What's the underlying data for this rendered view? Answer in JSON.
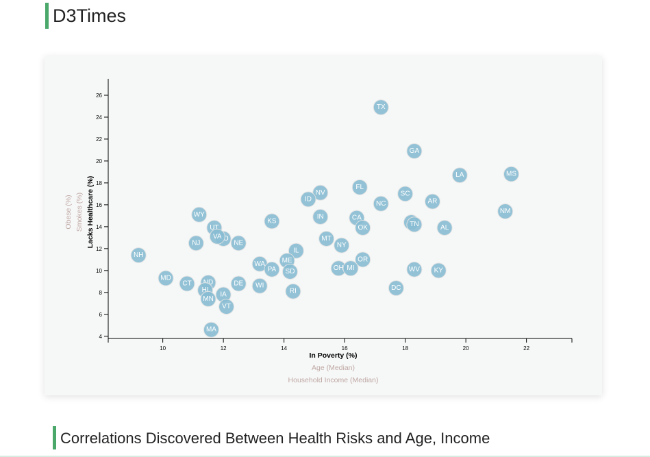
{
  "header": {
    "title": "D3Times"
  },
  "section": {
    "heading": "Correlations Discovered Between Health Risks and Age, Income"
  },
  "chart_data": {
    "type": "scatter",
    "xlabel": "In Poverty (%)",
    "ylabel": "Lacks Healthcare (%)",
    "x_axis_options": [
      "In Poverty (%)",
      "Age (Median)",
      "Household Income (Median)"
    ],
    "y_axis_options": [
      "Lacks Healthcare (%)",
      "Smokes (%)",
      "Obese (%)"
    ],
    "active_x": "In Poverty (%)",
    "active_y": "Lacks Healthcare (%)",
    "xlim": [
      8.2,
      23.5
    ],
    "ylim": [
      3.8,
      27.5
    ],
    "x_ticks": [
      10,
      12,
      14,
      16,
      18,
      20,
      22
    ],
    "y_ticks": [
      4,
      6,
      8,
      10,
      12,
      14,
      16,
      18,
      20,
      22,
      24,
      26
    ],
    "grid": false,
    "legend": "none",
    "points": [
      {
        "abbr": "TX",
        "x": 17.2,
        "y": 24.9
      },
      {
        "abbr": "GA",
        "x": 18.3,
        "y": 20.9
      },
      {
        "abbr": "LA",
        "x": 19.8,
        "y": 18.7
      },
      {
        "abbr": "MS",
        "x": 21.5,
        "y": 18.8
      },
      {
        "abbr": "FL",
        "x": 16.5,
        "y": 17.6
      },
      {
        "abbr": "NV",
        "x": 15.2,
        "y": 17.1
      },
      {
        "abbr": "SC",
        "x": 18.0,
        "y": 17.0
      },
      {
        "abbr": "ID",
        "x": 14.8,
        "y": 16.5
      },
      {
        "abbr": "AR",
        "x": 18.9,
        "y": 16.3
      },
      {
        "abbr": "NC",
        "x": 17.2,
        "y": 16.1
      },
      {
        "abbr": "NM",
        "x": 21.3,
        "y": 15.4
      },
      {
        "abbr": "WY",
        "x": 11.2,
        "y": 15.1
      },
      {
        "abbr": "IN",
        "x": 15.2,
        "y": 14.9
      },
      {
        "abbr": "CA",
        "x": 16.4,
        "y": 14.8
      },
      {
        "abbr": "KS",
        "x": 13.6,
        "y": 14.5
      },
      {
        "abbr": "AZ",
        "x": 18.2,
        "y": 14.4
      },
      {
        "abbr": "TN",
        "x": 18.3,
        "y": 14.2
      },
      {
        "abbr": "AL",
        "x": 19.3,
        "y": 13.9
      },
      {
        "abbr": "OK",
        "x": 16.6,
        "y": 13.9
      },
      {
        "abbr": "UT",
        "x": 11.7,
        "y": 13.9
      },
      {
        "abbr": "CO",
        "x": 12.0,
        "y": 12.9
      },
      {
        "abbr": "MT",
        "x": 15.4,
        "y": 12.9
      },
      {
        "abbr": "VA",
        "x": 11.8,
        "y": 13.1
      },
      {
        "abbr": "NJ",
        "x": 11.1,
        "y": 12.5
      },
      {
        "abbr": "NE",
        "x": 12.5,
        "y": 12.5
      },
      {
        "abbr": "NY",
        "x": 15.9,
        "y": 12.3
      },
      {
        "abbr": "IL",
        "x": 14.4,
        "y": 11.8
      },
      {
        "abbr": "NH",
        "x": 9.2,
        "y": 11.4
      },
      {
        "abbr": "OR",
        "x": 16.6,
        "y": 11.0
      },
      {
        "abbr": "ME",
        "x": 14.1,
        "y": 10.9
      },
      {
        "abbr": "WA",
        "x": 13.2,
        "y": 10.6
      },
      {
        "abbr": "OH",
        "x": 15.8,
        "y": 10.2
      },
      {
        "abbr": "MI",
        "x": 16.2,
        "y": 10.2
      },
      {
        "abbr": "PA",
        "x": 13.6,
        "y": 10.1
      },
      {
        "abbr": "WV",
        "x": 18.3,
        "y": 10.1
      },
      {
        "abbr": "KY",
        "x": 19.1,
        "y": 10.0
      },
      {
        "abbr": "SD",
        "x": 14.2,
        "y": 9.9
      },
      {
        "abbr": "MD",
        "x": 10.1,
        "y": 9.3
      },
      {
        "abbr": "CT",
        "x": 10.8,
        "y": 8.8
      },
      {
        "abbr": "ND",
        "x": 11.5,
        "y": 8.9
      },
      {
        "abbr": "DE",
        "x": 12.5,
        "y": 8.8
      },
      {
        "abbr": "WI",
        "x": 13.2,
        "y": 8.6
      },
      {
        "abbr": "HI",
        "x": 11.4,
        "y": 8.2
      },
      {
        "abbr": "DC",
        "x": 17.7,
        "y": 8.4
      },
      {
        "abbr": "RI",
        "x": 14.3,
        "y": 8.1
      },
      {
        "abbr": "IA",
        "x": 12.0,
        "y": 7.8
      },
      {
        "abbr": "MN",
        "x": 11.5,
        "y": 7.4
      },
      {
        "abbr": "VT",
        "x": 12.1,
        "y": 6.7
      },
      {
        "abbr": "MA",
        "x": 11.6,
        "y": 4.6
      }
    ]
  }
}
